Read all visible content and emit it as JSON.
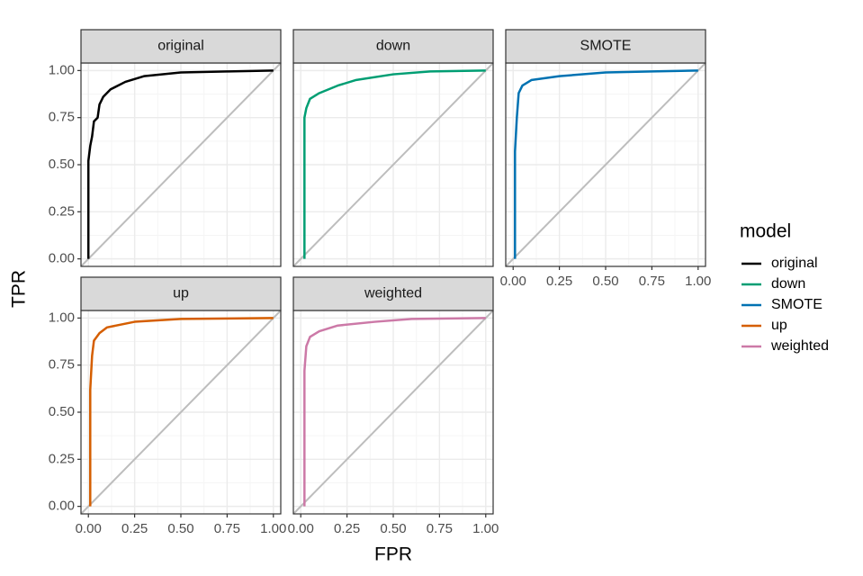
{
  "shared": {
    "x_label": "FPR",
    "y_label": "TPR",
    "legend_title": "model",
    "xlim": [
      -0.04,
      1.04
    ],
    "ylim": [
      -0.04,
      1.04
    ],
    "xticks": [
      {
        "value": 0,
        "label": "0.00"
      },
      {
        "value": 0.25,
        "label": "0.25"
      },
      {
        "value": 0.5,
        "label": "0.50"
      },
      {
        "value": 0.75,
        "label": "0.75"
      },
      {
        "value": 1,
        "label": "1.00"
      }
    ],
    "yticks": [
      {
        "value": 0,
        "label": "0.00"
      },
      {
        "value": 0.25,
        "label": "0.25"
      },
      {
        "value": 0.5,
        "label": "0.50"
      },
      {
        "value": 0.75,
        "label": "0.75"
      },
      {
        "value": 1,
        "label": "1.00"
      }
    ],
    "grid": true,
    "diagonal_color": "#bdbdbd"
  },
  "chart_data": [
    {
      "type": "line",
      "title": "original",
      "series": [
        {
          "name": "original",
          "color": "#000000",
          "x": [
            0,
            0,
            0.01,
            0.02,
            0.03,
            0.05,
            0.06,
            0.08,
            0.12,
            0.2,
            0.3,
            0.5,
            0.75,
            1
          ],
          "values": [
            0,
            0.52,
            0.6,
            0.65,
            0.73,
            0.75,
            0.82,
            0.86,
            0.9,
            0.94,
            0.97,
            0.99,
            0.995,
            1
          ]
        }
      ]
    },
    {
      "type": "line",
      "title": "down",
      "series": [
        {
          "name": "down",
          "color": "#009E73",
          "x": [
            0.02,
            0.02,
            0.03,
            0.05,
            0.1,
            0.2,
            0.3,
            0.5,
            0.7,
            1
          ],
          "values": [
            0,
            0.75,
            0.8,
            0.85,
            0.88,
            0.92,
            0.95,
            0.98,
            0.995,
            1
          ]
        }
      ]
    },
    {
      "type": "line",
      "title": "SMOTE",
      "series": [
        {
          "name": "SMOTE",
          "color": "#0072B2",
          "x": [
            0.01,
            0.01,
            0.02,
            0.03,
            0.05,
            0.1,
            0.25,
            0.5,
            0.75,
            1
          ],
          "values": [
            0,
            0.57,
            0.75,
            0.88,
            0.92,
            0.95,
            0.97,
            0.99,
            0.995,
            1
          ]
        }
      ]
    },
    {
      "type": "line",
      "title": "up",
      "series": [
        {
          "name": "up",
          "color": "#D55E00",
          "x": [
            0.01,
            0.01,
            0.02,
            0.03,
            0.06,
            0.1,
            0.25,
            0.5,
            1
          ],
          "values": [
            0,
            0.62,
            0.8,
            0.88,
            0.92,
            0.95,
            0.98,
            0.995,
            1
          ]
        }
      ]
    },
    {
      "type": "line",
      "title": "weighted",
      "series": [
        {
          "name": "weighted",
          "color": "#CC79A7",
          "x": [
            0.02,
            0.02,
            0.03,
            0.05,
            0.1,
            0.2,
            0.4,
            0.6,
            1
          ],
          "values": [
            0,
            0.72,
            0.85,
            0.9,
            0.93,
            0.96,
            0.98,
            0.995,
            1
          ]
        }
      ]
    }
  ]
}
